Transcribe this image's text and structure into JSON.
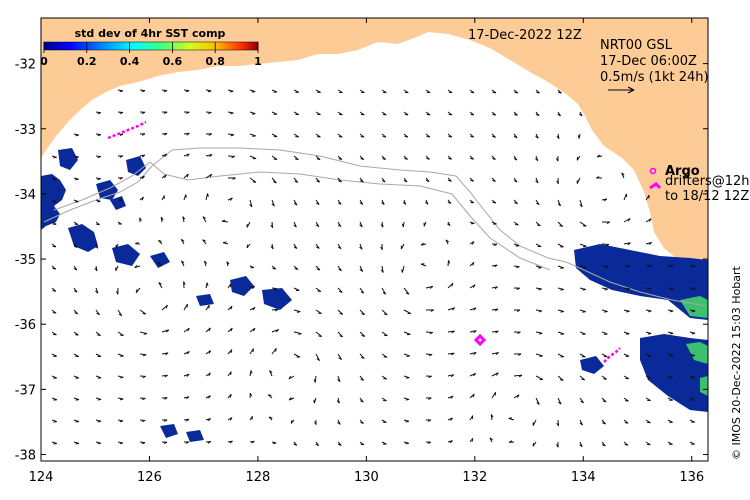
{
  "map": {
    "date_label": "17-Dec-2022 12Z",
    "product": {
      "name": "NRT00 GSL",
      "time": "17-Dec 06:00Z",
      "scale": "0.5m/s (1kt 24h)"
    },
    "colorbar": {
      "title": "std dev of 4hr SST comp",
      "ticks": [
        "0",
        "0.2",
        "0.4",
        "0.6",
        "0.8",
        "1"
      ],
      "tick_values": [
        0,
        0.2,
        0.4,
        0.6,
        0.8,
        1
      ]
    },
    "legend": {
      "argo": "Argo",
      "drifters_line1": "drifters@12h",
      "drifters_line2": "to 18/12 12Z"
    },
    "credit": "© IMOS 20-Dec-2022 15:03 Hobart",
    "x_axis": {
      "ticks": [
        "124",
        "126",
        "128",
        "130",
        "132",
        "134",
        "136"
      ],
      "values": [
        124,
        126,
        128,
        130,
        132,
        134,
        136
      ],
      "range": [
        124,
        136.3
      ]
    },
    "y_axis": {
      "ticks": [
        "-32",
        "-33",
        "-34",
        "-35",
        "-36",
        "-37",
        "-38"
      ],
      "values": [
        -32,
        -33,
        -34,
        -35,
        -36,
        -37,
        -38
      ],
      "range": [
        -38.1,
        -31.3
      ]
    },
    "colors": {
      "land": "#fccb96",
      "ocean": "#ffffff",
      "sst_blue": "#0a2a9a",
      "sst_green": "#3cc070",
      "drifter": "#ff00ff",
      "track": "#a8a8a8"
    }
  }
}
